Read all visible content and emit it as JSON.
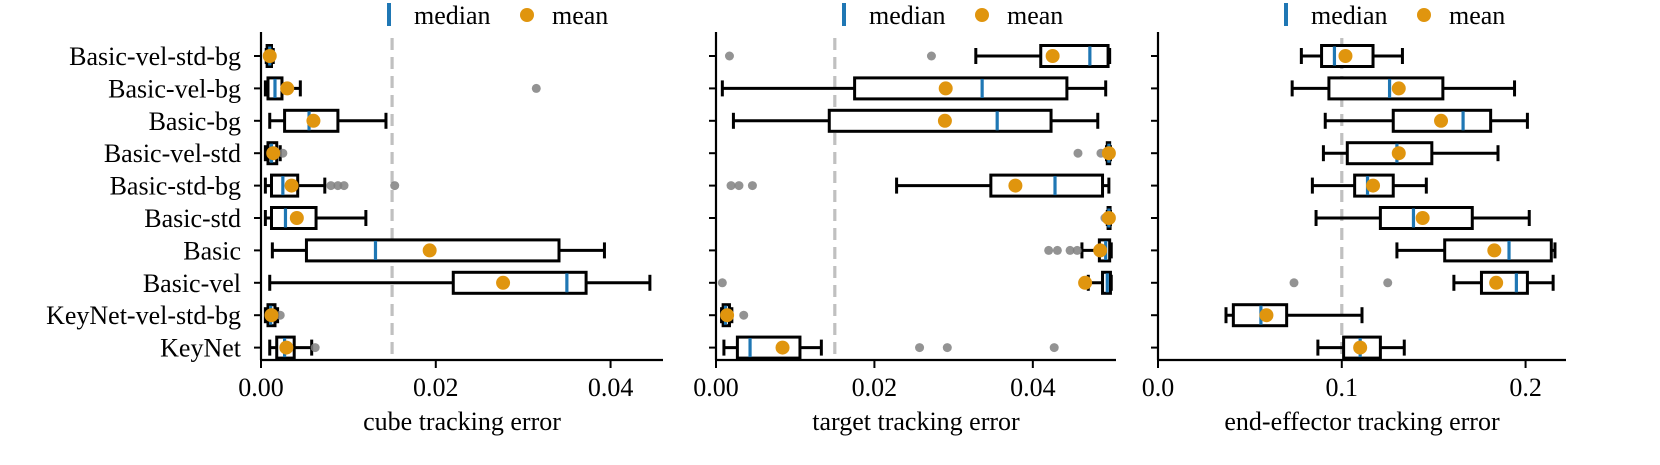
{
  "colors": {
    "median": "#1f77b4",
    "mean": "#e0950e",
    "outlier": "#808080",
    "threshold": "#c0c0c0",
    "box": "#000000"
  },
  "legend": {
    "median_label": "median",
    "mean_label": "mean"
  },
  "chart_data": [
    {
      "type": "box",
      "xlabel": "cube tracking error",
      "xlim": [
        0.0,
        0.046
      ],
      "xticks": [
        0.0,
        0.02,
        0.04
      ],
      "xtick_labels": [
        "0.00",
        "0.02",
        "0.04"
      ],
      "threshold": 0.015,
      "categories": [
        "Basic-vel-std-bg",
        "Basic-vel-bg",
        "Basic-bg",
        "Basic-vel-std",
        "Basic-std-bg",
        "Basic-std",
        "Basic",
        "Basic-vel",
        "KeyNet-vel-std-bg",
        "KeyNet"
      ],
      "boxes": [
        {
          "whislo": 0.0006,
          "q1": 0.0007,
          "med": 0.001,
          "q3": 0.0012,
          "whishi": 0.0014,
          "mean": 0.001,
          "fliers": []
        },
        {
          "whislo": 0.0005,
          "q1": 0.0008,
          "med": 0.0016,
          "q3": 0.0024,
          "whishi": 0.0045,
          "mean": 0.003,
          "fliers": [
            0.0315
          ]
        },
        {
          "whislo": 0.001,
          "q1": 0.0027,
          "med": 0.0055,
          "q3": 0.0088,
          "whishi": 0.0143,
          "mean": 0.006,
          "fliers": []
        },
        {
          "whislo": 0.0005,
          "q1": 0.0008,
          "med": 0.0012,
          "q3": 0.0018,
          "whishi": 0.0022,
          "mean": 0.0014,
          "fliers": [
            0.0025
          ]
        },
        {
          "whislo": 0.0005,
          "q1": 0.0012,
          "med": 0.0025,
          "q3": 0.0042,
          "whishi": 0.0073,
          "mean": 0.0035,
          "fliers": [
            0.008,
            0.0088,
            0.0095,
            0.0153
          ]
        },
        {
          "whislo": 0.0005,
          "q1": 0.0012,
          "med": 0.0028,
          "q3": 0.0063,
          "whishi": 0.012,
          "mean": 0.0041,
          "fliers": []
        },
        {
          "whislo": 0.0013,
          "q1": 0.0052,
          "med": 0.0131,
          "q3": 0.0341,
          "whishi": 0.0393,
          "mean": 0.0193,
          "fliers": []
        },
        {
          "whislo": 0.001,
          "q1": 0.022,
          "med": 0.035,
          "q3": 0.0372,
          "whishi": 0.0445,
          "mean": 0.0277,
          "fliers": []
        },
        {
          "whislo": 0.0005,
          "q1": 0.0008,
          "med": 0.0011,
          "q3": 0.0016,
          "whishi": 0.0019,
          "mean": 0.0012,
          "fliers": [
            0.0022
          ]
        },
        {
          "whislo": 0.001,
          "q1": 0.0018,
          "med": 0.0027,
          "q3": 0.0038,
          "whishi": 0.0058,
          "mean": 0.0029,
          "fliers": [
            0.0062
          ]
        }
      ]
    },
    {
      "type": "box",
      "xlabel": "target tracking error",
      "xlim": [
        0.0,
        0.0505
      ],
      "xticks": [
        0.0,
        0.02,
        0.04
      ],
      "xtick_labels": [
        "0.00",
        "0.02",
        "0.04"
      ],
      "threshold": 0.015,
      "categories": [
        "Basic-vel-std-bg",
        "Basic-vel-bg",
        "Basic-bg",
        "Basic-vel-std",
        "Basic-std-bg",
        "Basic-std",
        "Basic",
        "Basic-vel",
        "KeyNet-vel-std-bg",
        "KeyNet"
      ],
      "boxes": [
        {
          "whislo": 0.0328,
          "q1": 0.041,
          "med": 0.0472,
          "q3": 0.0495,
          "whishi": 0.0497,
          "mean": 0.0425,
          "fliers": [
            0.0017,
            0.0272
          ]
        },
        {
          "whislo": 0.0008,
          "q1": 0.0175,
          "med": 0.0336,
          "q3": 0.0443,
          "whishi": 0.0492,
          "mean": 0.029,
          "fliers": []
        },
        {
          "whislo": 0.0022,
          "q1": 0.0143,
          "med": 0.0355,
          "q3": 0.0423,
          "whishi": 0.0482,
          "mean": 0.0289,
          "fliers": []
        },
        {
          "whislo": 0.0493,
          "q1": 0.0494,
          "med": 0.0496,
          "q3": 0.0497,
          "whishi": 0.0498,
          "mean": 0.0496,
          "fliers": [
            0.0457,
            0.0486
          ]
        },
        {
          "whislo": 0.0228,
          "q1": 0.0347,
          "med": 0.0428,
          "q3": 0.0488,
          "whishi": 0.0496,
          "mean": 0.0378,
          "fliers": [
            0.0019,
            0.0029,
            0.0046
          ]
        },
        {
          "whislo": 0.0494,
          "q1": 0.0495,
          "med": 0.0496,
          "q3": 0.0497,
          "whishi": 0.0498,
          "mean": 0.0496,
          "fliers": [
            0.0491
          ]
        },
        {
          "whislo": 0.0462,
          "q1": 0.0484,
          "med": 0.0492,
          "q3": 0.0497,
          "whishi": 0.0499,
          "mean": 0.0485,
          "fliers": [
            0.042,
            0.0431,
            0.0447,
            0.0456
          ]
        },
        {
          "whislo": 0.047,
          "q1": 0.0488,
          "med": 0.0494,
          "q3": 0.0498,
          "whishi": 0.0499,
          "mean": 0.0466,
          "fliers": [
            0.0008
          ]
        },
        {
          "whislo": 0.0007,
          "q1": 0.0009,
          "med": 0.0012,
          "q3": 0.0017,
          "whishi": 0.002,
          "mean": 0.0014,
          "fliers": [
            0.0035
          ]
        },
        {
          "whislo": 0.001,
          "q1": 0.0027,
          "med": 0.0043,
          "q3": 0.0106,
          "whishi": 0.0133,
          "mean": 0.0084,
          "fliers": [
            0.0257,
            0.0292,
            0.0427
          ]
        }
      ]
    },
    {
      "type": "box",
      "xlabel": "end-effector tracking error",
      "xlim": [
        0.0,
        0.222
      ],
      "xticks": [
        0.0,
        0.1,
        0.2
      ],
      "xtick_labels": [
        "0.0",
        "0.1",
        "0.2"
      ],
      "threshold": 0.1,
      "categories": [
        "Basic-vel-std-bg",
        "Basic-vel-bg",
        "Basic-bg",
        "Basic-vel-std",
        "Basic-std-bg",
        "Basic-std",
        "Basic",
        "Basic-vel",
        "KeyNet-vel-std-bg",
        "KeyNet"
      ],
      "boxes": [
        {
          "whislo": 0.078,
          "q1": 0.089,
          "med": 0.096,
          "q3": 0.117,
          "whishi": 0.133,
          "mean": 0.102,
          "fliers": []
        },
        {
          "whislo": 0.073,
          "q1": 0.093,
          "med": 0.126,
          "q3": 0.155,
          "whishi": 0.194,
          "mean": 0.131,
          "fliers": []
        },
        {
          "whislo": 0.091,
          "q1": 0.128,
          "med": 0.166,
          "q3": 0.181,
          "whishi": 0.201,
          "mean": 0.154,
          "fliers": []
        },
        {
          "whislo": 0.09,
          "q1": 0.103,
          "med": 0.13,
          "q3": 0.149,
          "whishi": 0.185,
          "mean": 0.131,
          "fliers": []
        },
        {
          "whislo": 0.084,
          "q1": 0.107,
          "med": 0.114,
          "q3": 0.128,
          "whishi": 0.146,
          "mean": 0.117,
          "fliers": []
        },
        {
          "whislo": 0.086,
          "q1": 0.121,
          "med": 0.139,
          "q3": 0.171,
          "whishi": 0.202,
          "mean": 0.144,
          "fliers": []
        },
        {
          "whislo": 0.13,
          "q1": 0.156,
          "med": 0.191,
          "q3": 0.214,
          "whishi": 0.216,
          "mean": 0.183,
          "fliers": []
        },
        {
          "whislo": 0.161,
          "q1": 0.176,
          "med": 0.195,
          "q3": 0.201,
          "whishi": 0.215,
          "mean": 0.184,
          "fliers": [
            0.074,
            0.125
          ]
        },
        {
          "whislo": 0.037,
          "q1": 0.041,
          "med": 0.056,
          "q3": 0.07,
          "whishi": 0.111,
          "mean": 0.059,
          "fliers": []
        },
        {
          "whislo": 0.087,
          "q1": 0.101,
          "med": 0.11,
          "q3": 0.121,
          "whishi": 0.134,
          "mean": 0.11,
          "fliers": []
        }
      ]
    }
  ]
}
